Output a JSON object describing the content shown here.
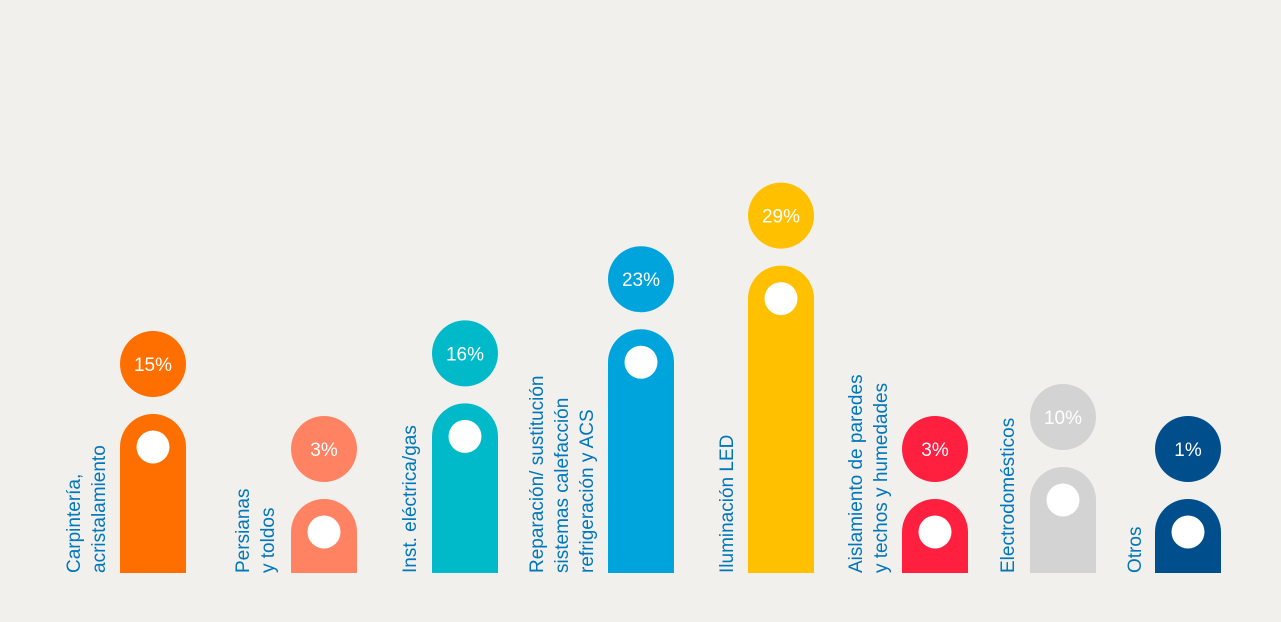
{
  "chart_data": {
    "type": "bar",
    "title": "",
    "xlabel": "",
    "ylabel": "",
    "value_suffix": "%",
    "grid": false,
    "legend": "none",
    "categories": [
      [
        "Carpintería,",
        "acristalamiento"
      ],
      [
        "Persianas",
        "y toldos"
      ],
      [
        "Inst. eléctrica/gas"
      ],
      [
        "Reparación/ sustitución",
        "sistemas calefacción",
        "refrigeración y ACS"
      ],
      [
        "Iluminación LED"
      ],
      [
        "Aislamiento de paredes",
        "y techos y humedades"
      ],
      [
        "Electrodomésticos"
      ],
      [
        "Otros"
      ]
    ],
    "values": [
      15,
      3,
      16,
      23,
      29,
      3,
      10,
      1
    ],
    "labels": [
      "15%",
      "3%",
      "16%",
      "23%",
      "29%",
      "3%",
      "10%",
      "1%"
    ],
    "bar_colors": [
      "#ff6f00",
      "#ff8262",
      "#00b9c9",
      "#00a4dc",
      "#ffc000",
      "#ff2040",
      "#d3d3d3",
      "#004f8c"
    ],
    "label_colors": [
      "#ff6f00",
      "#ff8262",
      "#00b9c9",
      "#00a4dc",
      "#ffc000",
      "#ff2040",
      "#d3d3d3",
      "#004f8c"
    ],
    "category_text_colors": [
      "#0077bb",
      "#0077bb",
      "#0077bb",
      "#0077bb",
      "#0077bb",
      "#0077bb",
      "#0077bb",
      "#0077bb"
    ]
  }
}
